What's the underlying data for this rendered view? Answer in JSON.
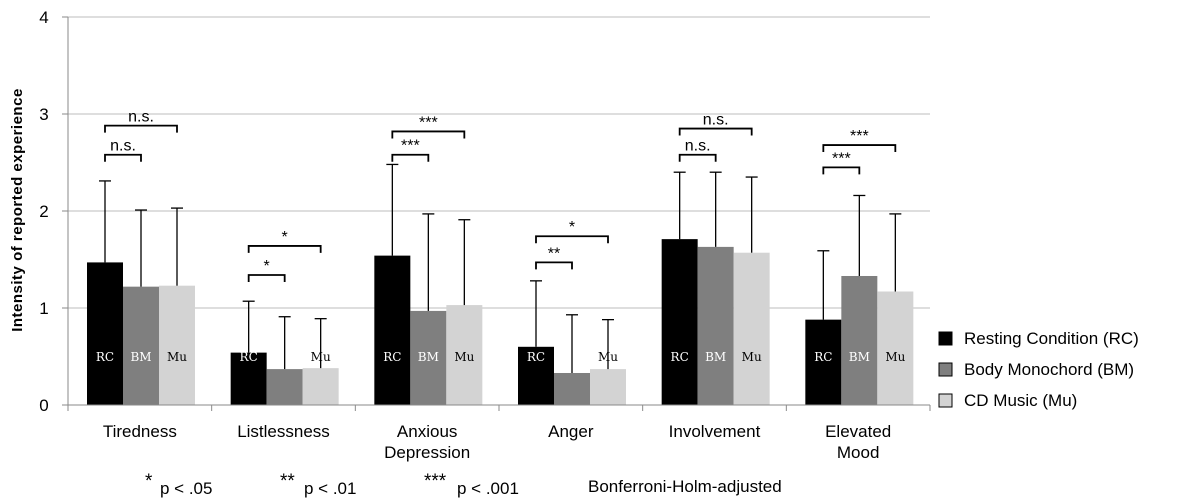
{
  "chart_data": {
    "type": "bar",
    "ylabel": "Intensity  of  reported  experience",
    "ylim": [
      0,
      4
    ],
    "yticks": [
      0,
      1,
      2,
      3,
      4
    ],
    "grid": true,
    "categories": [
      [
        "Tiredness"
      ],
      [
        "Listlessness"
      ],
      [
        "Anxious",
        "Depression"
      ],
      [
        "Anger"
      ],
      [
        "Involvement"
      ],
      [
        "Elevated",
        "Mood"
      ]
    ],
    "series": [
      {
        "name": "Resting Condition (RC)",
        "abbr": "RC",
        "color": "#000000",
        "label_color": "#ffffff",
        "values": [
          1.47,
          0.54,
          1.54,
          0.6,
          1.71,
          0.88
        ],
        "errors": [
          2.31,
          1.07,
          2.48,
          1.28,
          2.4,
          1.59
        ]
      },
      {
        "name": "Body Monochord (BM)",
        "abbr": "BM",
        "color": "#7f7f7f",
        "label_color": "#ffffff",
        "values": [
          1.22,
          0.37,
          0.97,
          0.33,
          1.63,
          1.33
        ],
        "errors": [
          2.01,
          0.91,
          1.97,
          0.93,
          2.4,
          2.16
        ]
      },
      {
        "name": "CD Music (Mu)",
        "abbr": "Mu",
        "color": "#d3d3d3",
        "label_color": "#000000",
        "values": [
          1.23,
          0.38,
          1.03,
          0.37,
          1.57,
          1.17
        ],
        "errors": [
          2.03,
          0.89,
          1.91,
          0.88,
          2.35,
          1.97
        ]
      }
    ],
    "significance": [
      {
        "group": 0,
        "from": 0,
        "to": 1,
        "label": "n.s.",
        "level": 2.58
      },
      {
        "group": 0,
        "from": 0,
        "to": 2,
        "label": "n.s.",
        "level": 2.88
      },
      {
        "group": 1,
        "from": 0,
        "to": 1,
        "label": "*",
        "level": 1.34
      },
      {
        "group": 1,
        "from": 0,
        "to": 2,
        "label": "*",
        "level": 1.64
      },
      {
        "group": 2,
        "from": 0,
        "to": 1,
        "label": "***",
        "level": 2.58
      },
      {
        "group": 2,
        "from": 0,
        "to": 2,
        "label": "***",
        "level": 2.82
      },
      {
        "group": 3,
        "from": 0,
        "to": 1,
        "label": "**",
        "level": 1.47
      },
      {
        "group": 3,
        "from": 0,
        "to": 2,
        "label": "*",
        "level": 1.74
      },
      {
        "group": 4,
        "from": 0,
        "to": 1,
        "label": "n.s.",
        "level": 2.58
      },
      {
        "group": 4,
        "from": 0,
        "to": 2,
        "label": "n.s.",
        "level": 2.85
      },
      {
        "group": 5,
        "from": 0,
        "to": 1,
        "label": "***",
        "level": 2.45
      },
      {
        "group": 5,
        "from": 0,
        "to": 2,
        "label": "***",
        "level": 2.68
      }
    ],
    "legend_position": "right"
  },
  "footnote": {
    "items": [
      {
        "stars": "*",
        "text": "p < .05"
      },
      {
        "stars": "**",
        "text": "p < .01"
      },
      {
        "stars": "***",
        "text": "p < .001"
      }
    ],
    "note": "Bonferroni-Holm-adjusted"
  }
}
